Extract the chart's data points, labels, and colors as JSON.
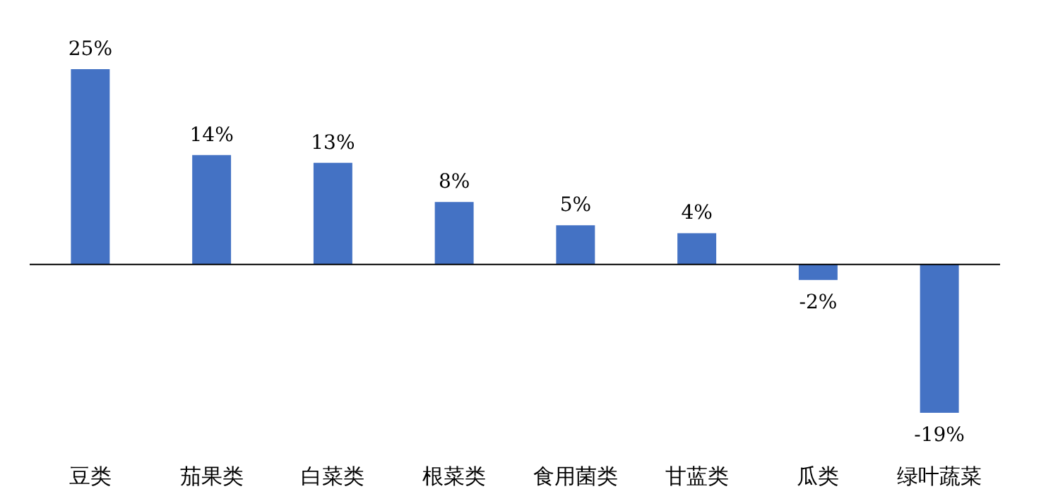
{
  "chart_data": {
    "type": "bar",
    "categories": [
      "豆类",
      "茄果类",
      "白菜类",
      "根菜类",
      "食用菌类",
      "甘蓝类",
      "瓜类",
      "绿叶蔬菜"
    ],
    "values": [
      25,
      14,
      13,
      8,
      5,
      4,
      -2,
      -19
    ],
    "value_labels": [
      "25%",
      "14%",
      "13%",
      "8%",
      "5%",
      "4%",
      "-2%",
      "-19%"
    ],
    "color": "#4472c4",
    "tick_labels": "x",
    "grid": false
  }
}
